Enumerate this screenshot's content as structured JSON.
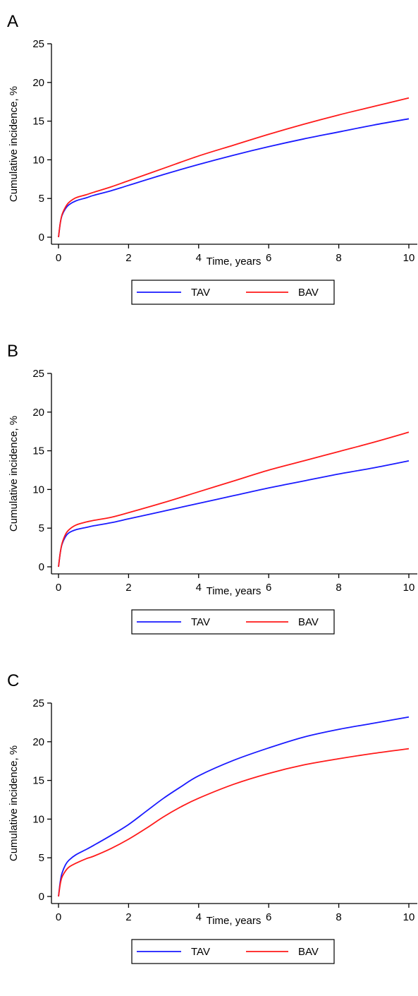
{
  "colors": {
    "TAV": "#1a1aff",
    "BAV": "#ff1a1a",
    "axis": "#000000"
  },
  "chart_data": [
    {
      "type": "line",
      "panel_label": "A",
      "xlabel": "Time, years",
      "ylabel": "Cumulative incidence, %",
      "xlim": [
        0,
        10
      ],
      "ylim": [
        0,
        25
      ],
      "xticks": [
        0,
        2,
        4,
        6,
        8,
        10
      ],
      "yticks": [
        0,
        5,
        10,
        15,
        20,
        25
      ],
      "legend": "bottom",
      "grid": false,
      "series": [
        {
          "name": "TAV",
          "x": [
            0,
            0.05,
            0.1,
            0.2,
            0.3,
            0.5,
            0.8,
            1,
            1.5,
            2,
            3,
            4,
            5,
            6,
            7,
            8,
            9,
            10
          ],
          "values": [
            0,
            1.8,
            2.8,
            3.7,
            4.2,
            4.7,
            5.1,
            5.4,
            6.0,
            6.7,
            8.1,
            9.4,
            10.6,
            11.7,
            12.7,
            13.6,
            14.5,
            15.3
          ]
        },
        {
          "name": "BAV",
          "x": [
            0,
            0.05,
            0.1,
            0.2,
            0.3,
            0.5,
            0.8,
            1,
            1.5,
            2,
            3,
            4,
            5,
            6,
            7,
            8,
            9,
            10
          ],
          "values": [
            0,
            1.8,
            2.9,
            3.9,
            4.5,
            5.1,
            5.5,
            5.8,
            6.5,
            7.3,
            8.9,
            10.5,
            11.9,
            13.3,
            14.6,
            15.8,
            16.9,
            18.0
          ]
        }
      ]
    },
    {
      "type": "line",
      "panel_label": "B",
      "xlabel": "Time, years",
      "ylabel": "Cumulative incidence, %",
      "xlim": [
        0,
        10
      ],
      "ylim": [
        0,
        25
      ],
      "xticks": [
        0,
        2,
        4,
        6,
        8,
        10
      ],
      "yticks": [
        0,
        5,
        10,
        15,
        20,
        25
      ],
      "legend": "bottom",
      "grid": false,
      "series": [
        {
          "name": "TAV",
          "x": [
            0,
            0.05,
            0.1,
            0.2,
            0.3,
            0.5,
            0.8,
            1,
            1.5,
            2,
            3,
            4,
            5,
            6,
            7,
            8,
            9,
            10
          ],
          "values": [
            0,
            1.8,
            2.9,
            3.9,
            4.4,
            4.8,
            5.1,
            5.3,
            5.7,
            6.2,
            7.2,
            8.2,
            9.2,
            10.2,
            11.1,
            12.0,
            12.8,
            13.7
          ]
        },
        {
          "name": "BAV",
          "x": [
            0,
            0.05,
            0.1,
            0.2,
            0.3,
            0.5,
            0.8,
            1,
            1.5,
            2,
            3,
            4,
            5,
            6,
            7,
            8,
            9,
            10
          ],
          "values": [
            0,
            1.8,
            3.0,
            4.2,
            4.8,
            5.4,
            5.8,
            6.0,
            6.4,
            7.0,
            8.3,
            9.7,
            11.1,
            12.5,
            13.7,
            14.9,
            16.1,
            17.4
          ]
        }
      ]
    },
    {
      "type": "line",
      "panel_label": "C",
      "xlabel": "Time, years",
      "ylabel": "Cumulative incidence, %",
      "xlim": [
        0,
        10
      ],
      "ylim": [
        0,
        25
      ],
      "xticks": [
        0,
        2,
        4,
        6,
        8,
        10
      ],
      "yticks": [
        0,
        5,
        10,
        15,
        20,
        25
      ],
      "legend": "bottom",
      "grid": false,
      "series": [
        {
          "name": "TAV",
          "x": [
            0,
            0.05,
            0.1,
            0.2,
            0.3,
            0.5,
            0.8,
            1,
            1.5,
            2,
            2.5,
            3,
            3.5,
            4,
            5,
            6,
            7,
            8,
            9,
            10
          ],
          "values": [
            0,
            1.9,
            3.0,
            4.1,
            4.7,
            5.4,
            6.1,
            6.6,
            7.9,
            9.3,
            11.0,
            12.7,
            14.2,
            15.6,
            17.6,
            19.2,
            20.6,
            21.6,
            22.4,
            23.2
          ]
        },
        {
          "name": "BAV",
          "x": [
            0,
            0.05,
            0.1,
            0.2,
            0.3,
            0.5,
            0.8,
            1,
            1.5,
            2,
            2.5,
            3,
            3.5,
            4,
            5,
            6,
            7,
            8,
            9,
            10
          ],
          "values": [
            0,
            1.6,
            2.5,
            3.3,
            3.8,
            4.3,
            4.9,
            5.2,
            6.2,
            7.4,
            8.8,
            10.3,
            11.6,
            12.7,
            14.5,
            15.9,
            17.0,
            17.8,
            18.5,
            19.1
          ]
        }
      ]
    }
  ]
}
